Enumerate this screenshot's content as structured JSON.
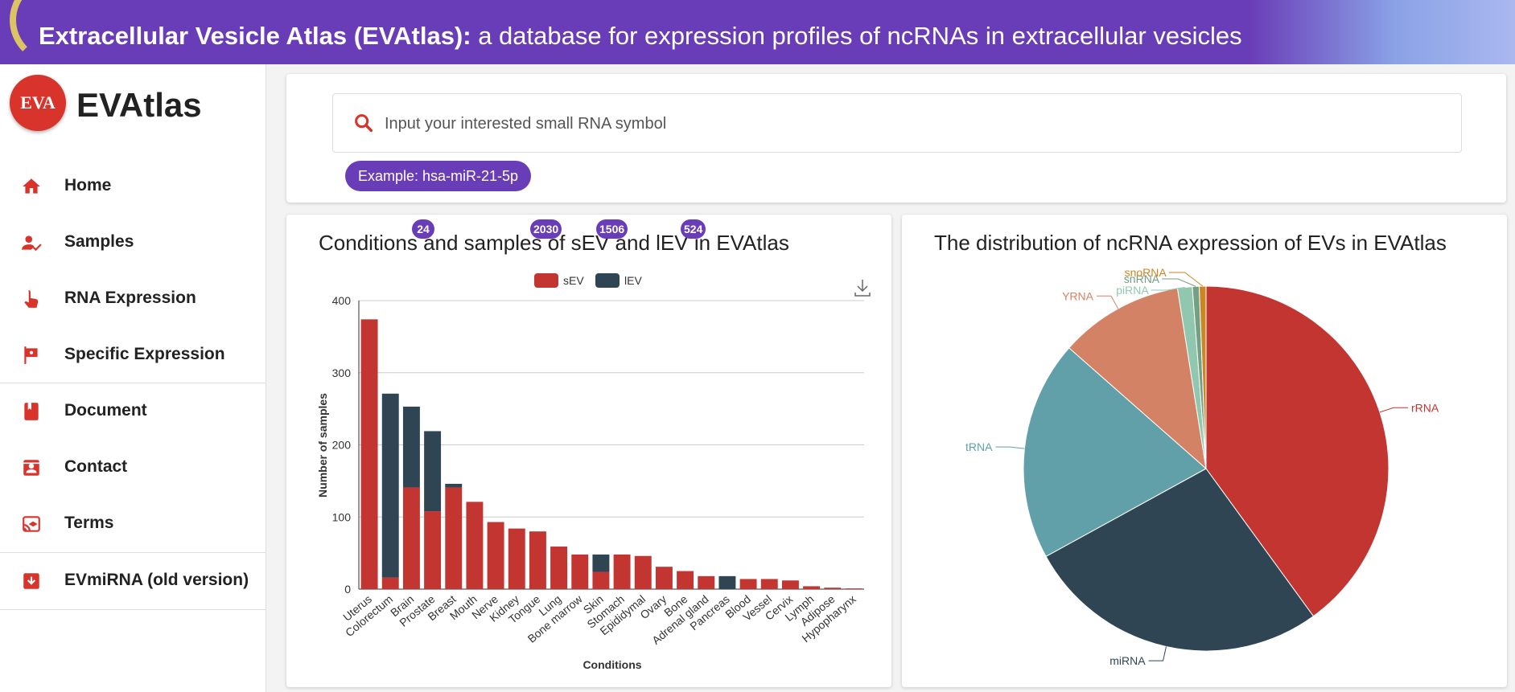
{
  "banner": {
    "title_bold": "Extracellular Vesicle Atlas (EVAtlas):",
    "title_rest": " a database for expression profiles of ncRNAs in extracellular vesicles"
  },
  "sidebar": {
    "logo_text": "EVA",
    "brand": "EVAtlas",
    "items": [
      {
        "label": "Home",
        "icon": "home-icon"
      },
      {
        "label": "Samples",
        "icon": "user-check-icon"
      },
      {
        "label": "RNA Expression",
        "icon": "touch-icon"
      },
      {
        "label": "Specific Expression",
        "icon": "flag-icon"
      },
      {
        "label": "Document",
        "icon": "book-icon"
      },
      {
        "label": "Contact",
        "icon": "contact-icon"
      },
      {
        "label": "Terms",
        "icon": "cast-icon"
      },
      {
        "label": "EVmiRNA (old version)",
        "icon": "archive-icon"
      }
    ]
  },
  "search": {
    "placeholder": "Input your interested small RNA symbol",
    "example_label": "Example: hsa-miR-21-5p"
  },
  "badges": [
    "24",
    "2030",
    "1506",
    "524"
  ],
  "colors": {
    "primary": "#6a3db8",
    "sev": "#c23531",
    "lev": "#2f4554"
  },
  "chart_data": [
    {
      "type": "bar",
      "title": "Conditions and samples of sEV and lEV in EVAtlas",
      "xlabel": "Conditions",
      "ylabel": "Number of samples",
      "ylim": [
        0,
        400
      ],
      "yticks": [
        0,
        100,
        200,
        300,
        400
      ],
      "stacked": true,
      "legend": "top-center",
      "grid": true,
      "categories": [
        "Uterus",
        "Colorectum",
        "Brain",
        "Prostate",
        "Breast",
        "Mouth",
        "Nerve",
        "Kidney",
        "Tongue",
        "Lung",
        "Bone marrow",
        "Skin",
        "Stomach",
        "Epididymal",
        "Ovary",
        "Bone",
        "Adrenal gland",
        "Pancreas",
        "Blood",
        "Vessel",
        "Cervix",
        "Lymph",
        "Adipose",
        "Hypopharynx"
      ],
      "series": [
        {
          "name": "sEV",
          "color": "#c23531",
          "values": [
            374,
            16,
            141,
            108,
            141,
            121,
            93,
            84,
            80,
            59,
            48,
            24,
            48,
            46,
            31,
            25,
            18,
            0,
            14,
            14,
            12,
            4,
            2,
            1
          ]
        },
        {
          "name": "lEV",
          "color": "#2f4554",
          "values": [
            0,
            255,
            112,
            111,
            5,
            0,
            0,
            0,
            0,
            0,
            0,
            24,
            0,
            0,
            0,
            0,
            0,
            18,
            0,
            0,
            0,
            0,
            0,
            0
          ]
        }
      ]
    },
    {
      "type": "pie",
      "title": "The distribution of ncRNA expression of EVs in EVAtlas",
      "labels": [
        "rRNA",
        "miRNA",
        "tRNA",
        "YRNA",
        "piRNA",
        "snRNA",
        "snoRNA"
      ],
      "values": [
        40,
        27,
        19.5,
        11,
        1.3,
        0.6,
        0.6
      ],
      "colors": [
        "#c23531",
        "#2f4554",
        "#61a0a8",
        "#d48265",
        "#91c7ae",
        "#749f83",
        "#ca8622"
      ]
    }
  ]
}
